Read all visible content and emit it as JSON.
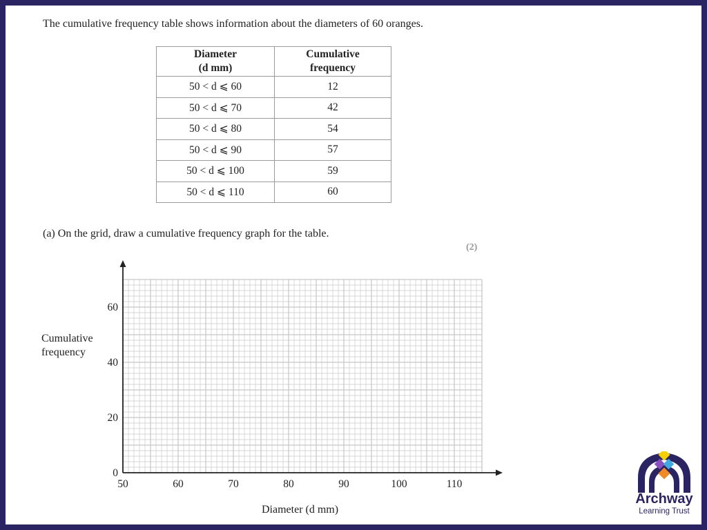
{
  "intro_text": "The cumulative frequency table shows information about the diameters of 60 oranges.",
  "table": {
    "headers": [
      [
        "Diameter",
        "(d mm)"
      ],
      [
        "Cumulative",
        "frequency"
      ]
    ],
    "rows": [
      {
        "diameter": "50 < d ⩽ 60",
        "cf": "12"
      },
      {
        "diameter": "50 < d ⩽ 70",
        "cf": "42"
      },
      {
        "diameter": "50 < d ⩽ 80",
        "cf": "54"
      },
      {
        "diameter": "50 < d ⩽ 90",
        "cf": "57"
      },
      {
        "diameter": "50 < d ⩽ 100",
        "cf": "59"
      },
      {
        "diameter": "50 < d ⩽ 110",
        "cf": "60"
      }
    ]
  },
  "question_a": "(a)  On the grid, draw a cumulative frequency graph for the table.",
  "marks": "(2)",
  "chart_data": {
    "type": "line",
    "x": [],
    "series": [],
    "xlabel": "Diameter (d mm)",
    "ylabel": [
      "Cumulative",
      "frequency"
    ],
    "xticks": [
      "50",
      "60",
      "70",
      "80",
      "90",
      "100",
      "110"
    ],
    "yticks": [
      "0",
      "20",
      "40",
      "60"
    ],
    "xlim": [
      50,
      115
    ],
    "ylim": [
      0,
      70
    ],
    "grid": true,
    "grid_minor_x": 1,
    "grid_minor_y": 2
  },
  "logo": {
    "title": "Archway",
    "subtitle": "Learning Trust",
    "colors": [
      "#f5d000",
      "#8a4fc0",
      "#3fa9e0",
      "#f08a24"
    ]
  },
  "colors": {
    "frame": "#2b2462",
    "grid": "#c8c8c8",
    "axis": "#222222"
  }
}
